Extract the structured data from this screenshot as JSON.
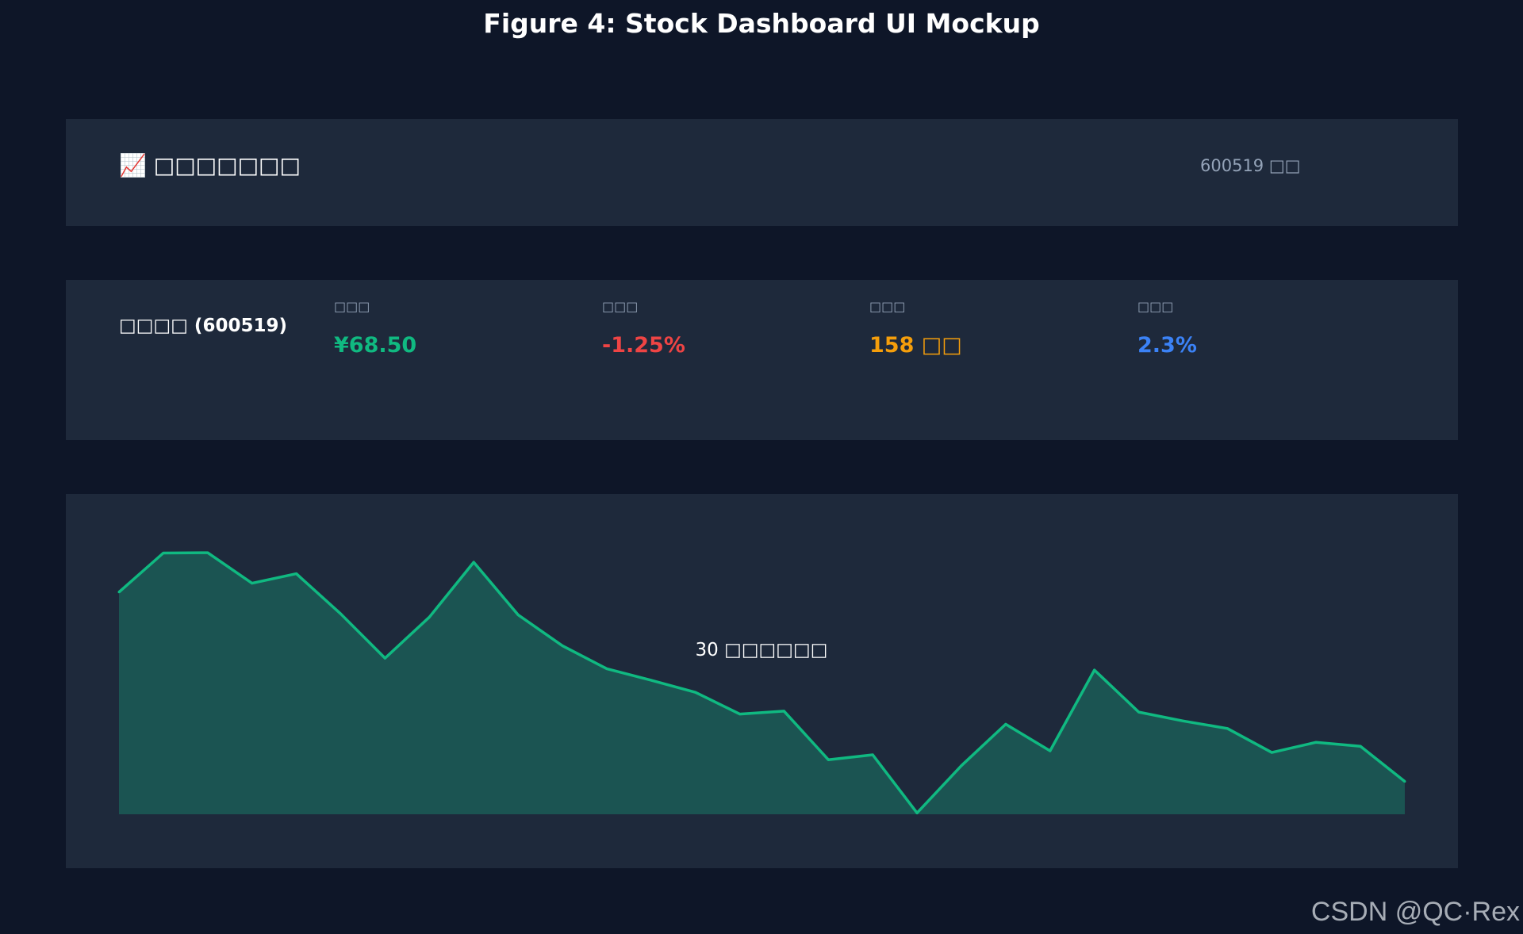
{
  "figure_title": "Figure 4: Stock Dashboard UI Mockup",
  "header": {
    "app_title": "📈 □□□□□□□",
    "stock_code": "600519 □□"
  },
  "summary": {
    "stock_name": "□□□□ (600519)",
    "metrics": [
      {
        "label": "□□□",
        "value": "¥68.50",
        "color": "#10b981"
      },
      {
        "label": "□□□",
        "value": "-1.25%",
        "color": "#ef4444"
      },
      {
        "label": "□□□",
        "value": "158 □□",
        "color": "#f59e0b"
      },
      {
        "label": "□□□",
        "value": "2.3%",
        "color": "#3b82f6"
      }
    ]
  },
  "chart_data": {
    "type": "area",
    "title": "",
    "center_label": "30 □□□□□□",
    "xlabel": "",
    "ylabel": "",
    "x": [
      1,
      2,
      3,
      4,
      5,
      6,
      7,
      8,
      9,
      10,
      11,
      12,
      13,
      14,
      15,
      16,
      17,
      18,
      19,
      20,
      21,
      22,
      23,
      24,
      25,
      26,
      27,
      28,
      29,
      30
    ],
    "series": [
      {
        "values": [
          70.76,
          71.95,
          71.96,
          71.03,
          71.32,
          70.1,
          68.75,
          70.0,
          71.67,
          70.07,
          69.13,
          68.43,
          68.08,
          67.71,
          67.05,
          67.14,
          65.66,
          65.81,
          64.04,
          65.48,
          66.74,
          65.93,
          68.39,
          67.11,
          66.84,
          66.61,
          65.88,
          66.19,
          66.07,
          65.0
        ]
      }
    ],
    "ylim": [
      64.0,
      72.3
    ],
    "line_color": "#10b981",
    "fill_color": "#1b5452",
    "grid": false,
    "legend": "none"
  },
  "watermark": "CSDN @QC·Rex"
}
